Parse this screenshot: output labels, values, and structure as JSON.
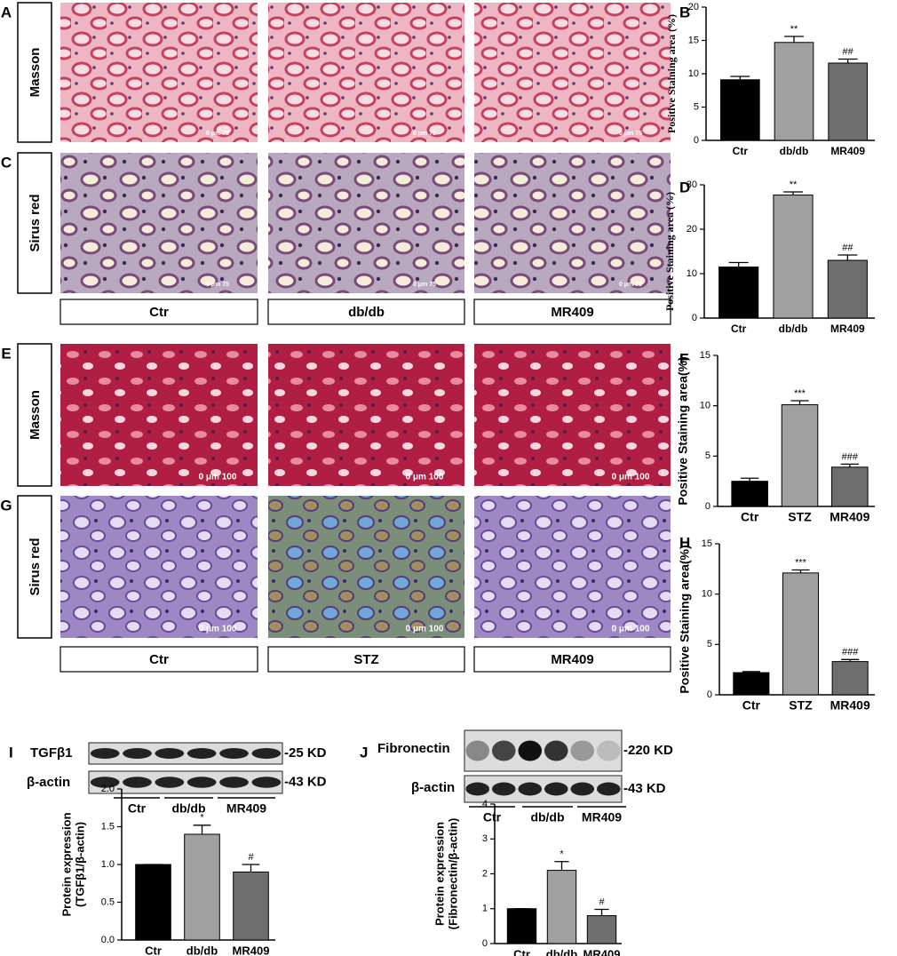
{
  "histology": [
    {
      "letter": "A",
      "row_label": "Masson"
    },
    {
      "letter": "C",
      "row_label": "Sirus red"
    },
    {
      "letter": "E",
      "row_label": "Masson"
    },
    {
      "letter": "G",
      "row_label": "Sirus red"
    }
  ],
  "column_labels": [
    [
      "Ctr",
      "db/db",
      "MR409"
    ],
    [
      "Ctr",
      "STZ",
      "MR409"
    ]
  ],
  "scale_labels": [
    "0   μm   75",
    "0   μm   100"
  ],
  "blots": [
    {
      "letter": "I",
      "bands": [
        {
          "name": "TGFβ1",
          "size": "-25 KD"
        },
        {
          "name": "β-actin",
          "size": "-43 KD"
        }
      ],
      "groups": [
        "Ctr",
        "db/db",
        "MR409"
      ]
    },
    {
      "letter": "J",
      "bands": [
        {
          "name": "Fibronectin",
          "size": "-220 KD"
        },
        {
          "name": "β-actin",
          "size": "-43 KD"
        }
      ],
      "groups": [
        "Ctr",
        "db/db",
        "MR409"
      ]
    }
  ],
  "chart_data": [
    {
      "type": "bar",
      "label": "B",
      "ylabel": [
        "Positive Staining area (%)"
      ],
      "categories": [
        "Ctr",
        "db/db",
        "MR409"
      ],
      "values": [
        9.1,
        14.7,
        11.6
      ],
      "errors": [
        0.5,
        0.9,
        0.6
      ],
      "annotations": [
        null,
        "**",
        "##"
      ],
      "colors": [
        "#000000",
        "#a0a0a0",
        "#6e6e6e"
      ],
      "ylim": [
        0,
        20
      ],
      "yticks": [
        0,
        5,
        10,
        15,
        20
      ]
    },
    {
      "type": "bar",
      "label": "D",
      "ylabel": [
        "Positive Staining area (%)"
      ],
      "categories": [
        "Ctr",
        "db/db",
        "MR409"
      ],
      "values": [
        11.5,
        27.7,
        13
      ],
      "errors": [
        1,
        0.7,
        1.2
      ],
      "annotations": [
        null,
        "**",
        "##"
      ],
      "colors": [
        "#000000",
        "#a0a0a0",
        "#6e6e6e"
      ],
      "ylim": [
        0,
        30
      ],
      "yticks": [
        0,
        10,
        20,
        30
      ]
    },
    {
      "type": "bar",
      "label": "F",
      "ylabel": [
        "Positive Staining area(%)"
      ],
      "categories": [
        "Ctr",
        "STZ",
        "MR409"
      ],
      "values": [
        2.5,
        10.1,
        3.9
      ],
      "errors": [
        0.3,
        0.4,
        0.3
      ],
      "annotations": [
        null,
        "***",
        "###"
      ],
      "colors": [
        "#000000",
        "#a0a0a0",
        "#6e6e6e"
      ],
      "ylim": [
        0,
        15
      ],
      "yticks": [
        0,
        5,
        10,
        15
      ]
    },
    {
      "type": "bar",
      "label": "H",
      "ylabel": [
        "Positive Staining area(%)"
      ],
      "categories": [
        "Ctr",
        "STZ",
        "MR409"
      ],
      "values": [
        2.2,
        12.1,
        3.3
      ],
      "errors": [
        0.1,
        0.3,
        0.2
      ],
      "annotations": [
        null,
        "***",
        "###"
      ],
      "colors": [
        "#000000",
        "#a0a0a0",
        "#6e6e6e"
      ],
      "ylim": [
        0,
        15
      ],
      "yticks": [
        0,
        5,
        10,
        15
      ]
    },
    {
      "type": "bar",
      "ylabel": [
        "Protein expression",
        "(TGFβ1/β-actin)"
      ],
      "categories": [
        "Ctr",
        "db/db",
        "MR409"
      ],
      "values": [
        1.0,
        1.4,
        0.9
      ],
      "errors": [
        0,
        0.12,
        0.1
      ],
      "annotations": [
        null,
        "*",
        "#"
      ],
      "colors": [
        "#000000",
        "#a0a0a0",
        "#6e6e6e"
      ],
      "ylim": [
        0,
        2
      ],
      "yticks": [
        {
          "value": 0,
          "label": "0.0"
        },
        0.5,
        {
          "value": 1,
          "label": "1.0"
        },
        1.5,
        {
          "value": 2,
          "label": "2.0"
        }
      ]
    },
    {
      "type": "bar",
      "ylabel": [
        "Protein expression",
        "(Fibronectin/β-actin)"
      ],
      "categories": [
        "Ctr",
        "db/db",
        "MR409"
      ],
      "values": [
        1,
        2.1,
        0.8
      ],
      "errors": [
        0,
        0.25,
        0.18
      ],
      "annotations": [
        null,
        "*",
        "#"
      ],
      "colors": [
        "#000000",
        "#a0a0a0",
        "#6e6e6e"
      ],
      "ylim": [
        0,
        4
      ],
      "yticks": [
        0,
        1,
        2,
        3,
        4
      ]
    }
  ]
}
